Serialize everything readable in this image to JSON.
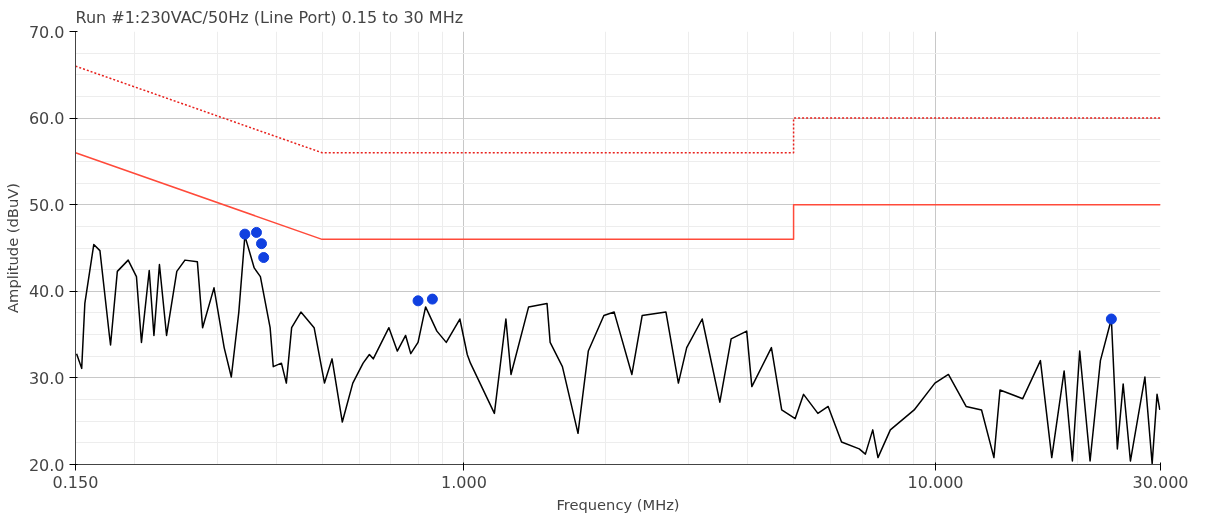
{
  "chart_data": {
    "type": "line",
    "title": "Run #1:230VAC/50Hz (Line Port) 0.15 to 30 MHz",
    "xlabel": "Frequency (MHz)",
    "ylabel": "Amplitude (dBuV)",
    "log": "x",
    "grid": true,
    "xlim": [
      0.15,
      30
    ],
    "ylim": [
      20,
      70
    ],
    "xticks": [
      {
        "value": 0.15,
        "label": "0.150"
      },
      {
        "value": 1,
        "label": "1.000"
      },
      {
        "value": 10,
        "label": "10.000"
      },
      {
        "value": 30,
        "label": "30.000"
      }
    ],
    "yticks": [
      {
        "value": 20,
        "label": "20.0"
      },
      {
        "value": 30,
        "label": "30.0"
      },
      {
        "value": 40,
        "label": "40.0"
      },
      {
        "value": 50,
        "label": "50.0"
      },
      {
        "value": 60,
        "label": "60.0"
      },
      {
        "value": 70,
        "label": "70.0"
      }
    ],
    "series": [
      {
        "color": "#e8201c",
        "line_style": "dotted",
        "x": [
          0.15,
          0.5,
          5,
          5,
          30
        ],
        "values": [
          66,
          56,
          56,
          60,
          60
        ]
      },
      {
        "color": "#ff4a3a",
        "line_style": "solid",
        "x": [
          0.15,
          0.5,
          5,
          5,
          30
        ],
        "values": [
          56,
          46,
          46,
          50,
          50
        ]
      },
      {
        "color": "#000000",
        "line_style": "solid",
        "x": [
          0.1508,
          0.1546,
          0.157,
          0.164,
          0.169,
          0.177,
          0.178,
          0.184,
          0.194,
          0.202,
          0.207,
          0.215,
          0.22,
          0.226,
          0.234,
          0.246,
          0.256,
          0.272,
          0.279,
          0.295,
          0.31,
          0.321,
          0.333,
          0.343,
          0.359,
          0.37,
          0.388,
          0.394,
          0.41,
          0.42,
          0.431,
          0.451,
          0.481,
          0.506,
          0.525,
          0.552,
          0.581,
          0.611,
          0.63,
          0.642,
          0.693,
          0.722,
          0.752,
          0.771,
          0.799,
          0.829,
          0.876,
          0.917,
          0.98,
          1.016,
          1.032,
          1.16,
          1.227,
          1.258,
          1.371,
          1.5,
          1.523,
          1.617,
          1.745,
          1.835,
          1.98,
          2.082,
          2.27,
          2.387,
          2.681,
          2.849,
          2.967,
          3.2,
          3.488,
          3.686,
          3.977,
          4.078,
          4.487,
          4.718,
          5.04,
          5.25,
          5.63,
          5.92,
          6.32,
          6.89,
          7.1,
          7.36,
          7.55,
          8.02,
          9.01,
          9.97,
          10.65,
          11.61,
          12.52,
          13.3,
          13.7,
          15.31,
          16.69,
          17.64,
          18.74,
          19.51,
          20.22,
          21.27,
          22.37,
          23.6,
          24.3,
          25.0,
          25.9,
          27.8,
          28.8,
          29.5,
          29.9
        ],
        "values": [
          32.8,
          31.1,
          38.6,
          45.4,
          44.7,
          34.9,
          33.8,
          42.3,
          43.6,
          41.7,
          34.1,
          42.4,
          34.9,
          43.1,
          34.9,
          42.3,
          43.6,
          43.4,
          35.8,
          40.4,
          33.5,
          30.1,
          37.6,
          46.4,
          42.7,
          41.7,
          35.8,
          31.3,
          31.7,
          29.4,
          35.8,
          37.6,
          35.8,
          29.4,
          32.2,
          24.9,
          29.4,
          31.7,
          32.7,
          32.2,
          35.8,
          33.1,
          34.9,
          32.8,
          34.1,
          38.2,
          35.4,
          34.1,
          36.8,
          32.7,
          31.7,
          25.9,
          36.8,
          30.4,
          38.2,
          38.6,
          34.1,
          31.3,
          23.6,
          33.1,
          37.2,
          37.6,
          30.4,
          37.2,
          37.6,
          29.4,
          33.5,
          36.8,
          27.2,
          34.5,
          35.4,
          29.0,
          33.5,
          26.3,
          25.3,
          28.1,
          25.9,
          26.7,
          22.6,
          21.8,
          21.2,
          24.0,
          20.8,
          24.0,
          26.3,
          29.4,
          30.4,
          26.7,
          26.3,
          20.8,
          28.6,
          27.6,
          32.0,
          20.8,
          30.8,
          20.4,
          33.1,
          20.4,
          32.0,
          36.8,
          21.8,
          29.3,
          20.4,
          30.1,
          20.1,
          28.1,
          26.3
        ]
      },
      {
        "type": "scatter",
        "color": "#1040e0",
        "marker": "circle",
        "x": [
          0.343,
          0.363,
          0.372,
          0.376,
          0.799,
          0.857,
          23.6
        ],
        "values": [
          46.6,
          46.8,
          45.5,
          43.9,
          38.9,
          39.1,
          36.8
        ]
      }
    ]
  }
}
